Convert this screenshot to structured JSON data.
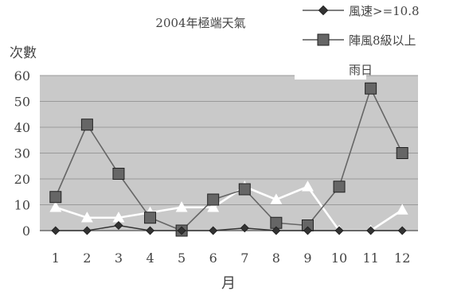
{
  "chart_data": {
    "type": "line",
    "title": "2004年極端天氣",
    "xlabel": "月",
    "ylabel": "次數",
    "categories": [
      "1",
      "2",
      "3",
      "4",
      "5",
      "6",
      "7",
      "8",
      "9",
      "10",
      "11",
      "12"
    ],
    "ylim": [
      0,
      60
    ],
    "yticks": [
      0,
      10,
      20,
      30,
      40,
      50,
      60
    ],
    "grid": true,
    "legend_position": "top-right",
    "series": [
      {
        "name": "風速>=10.8",
        "marker": "diamond",
        "color": "#333333",
        "values": [
          0,
          0,
          2,
          0,
          0,
          0,
          1,
          0,
          0,
          0,
          0,
          0
        ]
      },
      {
        "name": "陣風8級以上",
        "marker": "square",
        "color": "#666666",
        "values": [
          13,
          41,
          22,
          5,
          0,
          12,
          16,
          3,
          2,
          17,
          55,
          30
        ]
      },
      {
        "name": "雨日",
        "marker": "triangle",
        "color": "#ffffff",
        "values": [
          9,
          5,
          5,
          7,
          9,
          9,
          17,
          12,
          17,
          0,
          0,
          8
        ]
      }
    ]
  }
}
